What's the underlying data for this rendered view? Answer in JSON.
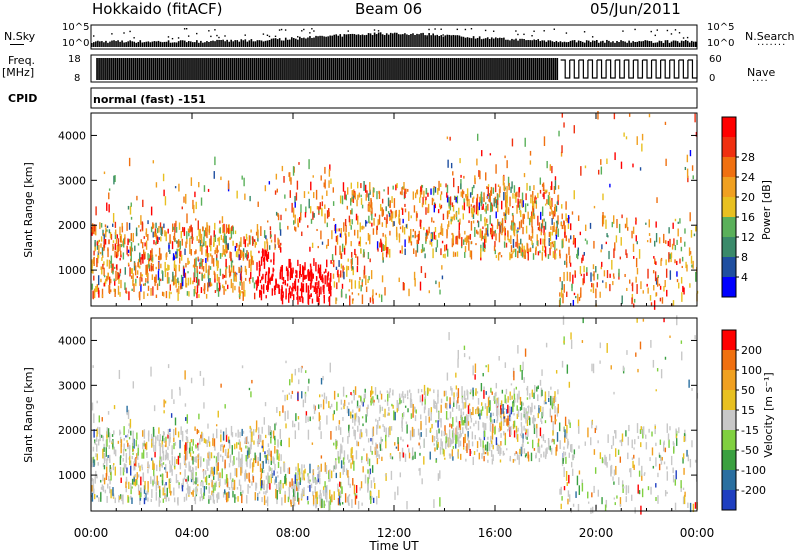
{
  "header": {
    "station": "Hokkaido (fitACF)",
    "beam": "Beam 06",
    "date": "05/Jun/2011"
  },
  "left_labels": {
    "nsky": "N.Sky",
    "freq": "Freq.",
    "freq_unit": "[MHz]",
    "cpid": "CPID"
  },
  "right_labels": {
    "nsearch": "N.Search",
    "nave": "Nave"
  },
  "strip_ticks": {
    "noise_left": [
      "10^5",
      "10^0"
    ],
    "noise_right": [
      "10^5",
      "10^0"
    ],
    "freq_left": [
      "18",
      "8"
    ],
    "freq_right": [
      "60",
      "0"
    ]
  },
  "cpid_text": "normal (fast) -151",
  "colors": {
    "power": [
      "#0000ff",
      "#1f4fa0",
      "#3a8a6a",
      "#5ab05a",
      "#e8c020",
      "#f0a020",
      "#f07010",
      "#f03010",
      "#ff0000"
    ],
    "velocity": [
      "#1f3fc0",
      "#2a6fa0",
      "#3aa040",
      "#80d040",
      "#c8c8c8",
      "#e8c020",
      "#f0a020",
      "#f07010",
      "#ff0000"
    ]
  },
  "chart_data": [
    {
      "type": "heatmap",
      "name": "power",
      "ylabel": "Slant Range [km]",
      "yticks": [
        "1000",
        "2000",
        "3000",
        "4000"
      ],
      "ylim": [
        200,
        4500
      ],
      "xlim": [
        0,
        24
      ],
      "colorbar_label": "Power [dB]",
      "colorbar_ticks": [
        "4",
        "8",
        "12",
        "16",
        "20",
        "24",
        "28"
      ],
      "values_range": [
        0,
        30
      ]
    },
    {
      "type": "heatmap",
      "name": "velocity",
      "ylabel": "Slant Range [km]",
      "yticks": [
        "1000",
        "2000",
        "3000",
        "4000"
      ],
      "ylim": [
        200,
        4500
      ],
      "xlim": [
        0,
        24
      ],
      "colorbar_label": "Velocity [m s⁻¹]",
      "colorbar_ticks": [
        "200",
        "100",
        "50",
        "15",
        "-15",
        "-50",
        "-100",
        "-200"
      ],
      "values_range": [
        -250,
        250
      ]
    }
  ],
  "x_axis": {
    "ticks": [
      "00:00",
      "04:00",
      "08:00",
      "12:00",
      "16:00",
      "20:00",
      "00:00"
    ],
    "label": "Time UT"
  }
}
